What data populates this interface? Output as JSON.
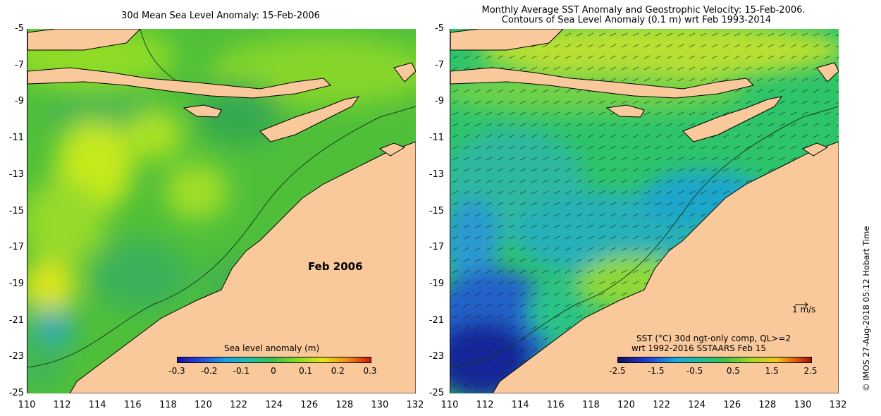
{
  "left_panel": {
    "title": "30d Mean Sea Level Anomaly: 15-Feb-2006",
    "date_label": "Feb 2006",
    "colorbar": {
      "title": "Sea level anomaly (m)",
      "ticks": [
        "-0.3",
        "-0.2",
        "-0.1",
        "0",
        "0.1",
        "0.2",
        "0.3"
      ],
      "range": [
        -0.3,
        0.3
      ],
      "units": "m"
    }
  },
  "right_panel": {
    "title_line1": "Monthly Average SST Anomaly  and Geostrophic Velocity: 15-Feb-2006.",
    "title_line2": "Contours of Sea Level Anomaly (0.1 m) wrt Feb 1993-2014",
    "vector_scale_label": "1 m/s",
    "colorbar": {
      "title_line1": "SST (°C) 30d ngt-only comp, QL>=2",
      "title_line2": "wrt 1992-2016 SSTAARS Feb 15",
      "ticks": [
        "-2.5",
        "-1.5",
        "-0.5",
        "0.5",
        "1.5",
        "2.5"
      ],
      "range": [
        -2.5,
        2.5
      ],
      "units": "°C"
    }
  },
  "axes": {
    "y_ticks": [
      "-5",
      "-7",
      "-9",
      "-11",
      "-13",
      "-15",
      "-17",
      "-19",
      "-21",
      "-23",
      "-25"
    ],
    "x_ticks": [
      "110",
      "112",
      "114",
      "116",
      "118",
      "120",
      "122",
      "124",
      "126",
      "128",
      "130",
      "132"
    ],
    "lat_range": [
      -25,
      -5
    ],
    "lon_range": [
      110,
      132
    ]
  },
  "credit": "©  IMOS 27-Aug-2018 05:12 Hobart Time",
  "colors": {
    "land": "#f9c89b",
    "sla_background": "#56c23c",
    "sst_background": "#2ec46a"
  }
}
